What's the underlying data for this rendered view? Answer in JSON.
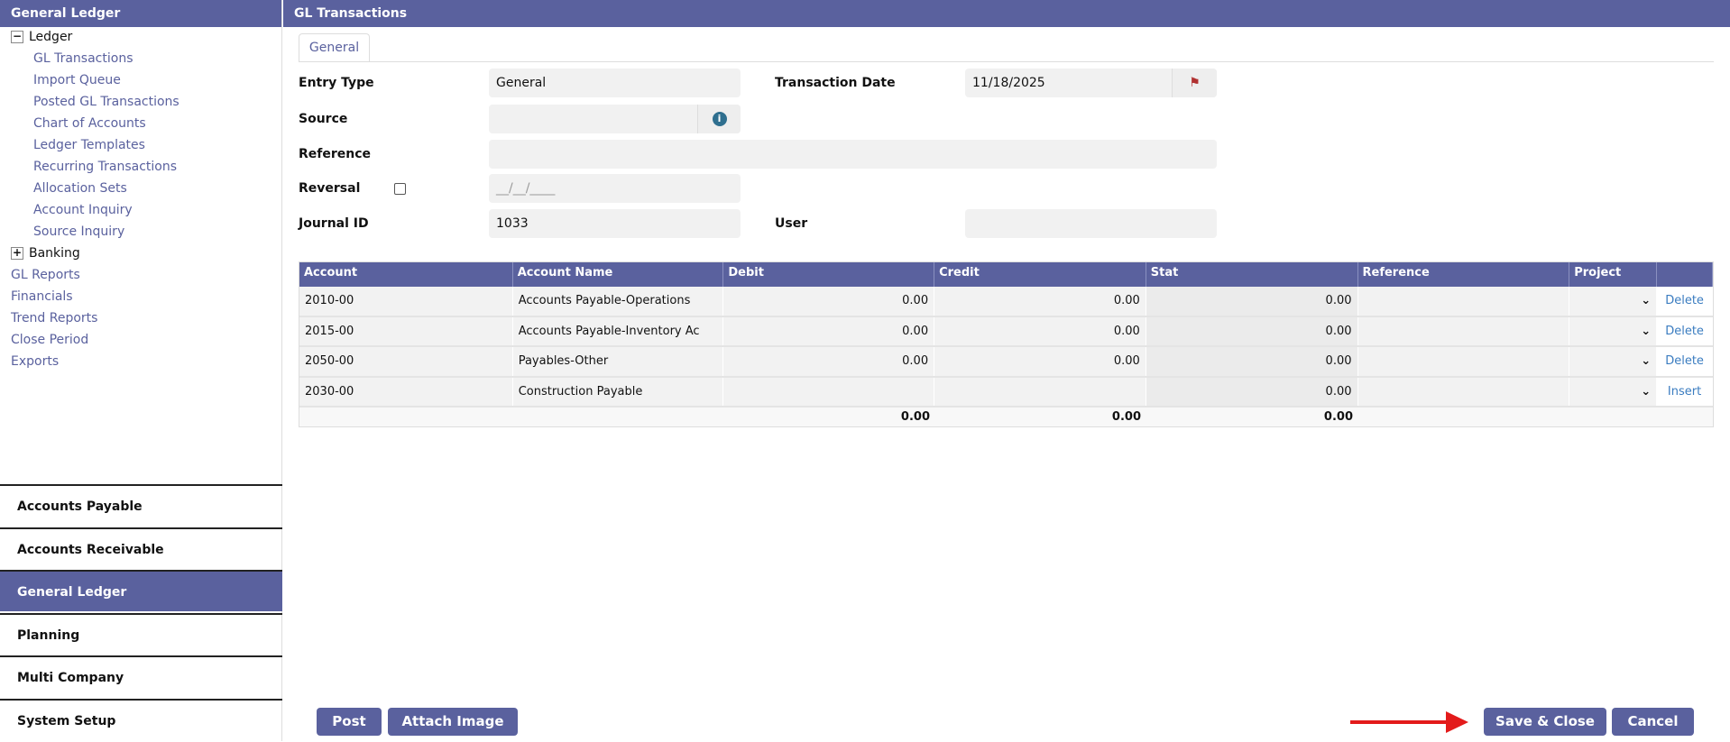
{
  "sidebar": {
    "title": "General Ledger",
    "ledger": {
      "label": "Ledger",
      "items": [
        "GL Transactions",
        "Import Queue",
        "Posted GL Transactions",
        "Chart of Accounts",
        "Ledger Templates",
        "Recurring Transactions",
        "Allocation Sets",
        "Account Inquiry",
        "Source Inquiry"
      ]
    },
    "banking": "Banking",
    "links": [
      "GL Reports",
      "Financials",
      "Trend Reports",
      "Close Period",
      "Exports"
    ],
    "modules": [
      "Accounts Payable",
      "Accounts Receivable",
      "General Ledger",
      "Planning",
      "Multi Company",
      "System Setup"
    ],
    "active_module": "General Ledger"
  },
  "header": {
    "title": "GL Transactions"
  },
  "tabs": [
    "General"
  ],
  "form": {
    "entry_type": {
      "label": "Entry Type",
      "value": "General"
    },
    "transaction_date": {
      "label": "Transaction Date",
      "value": "11/18/2025"
    },
    "source": {
      "label": "Source",
      "value": ""
    },
    "reference": {
      "label": "Reference",
      "value": ""
    },
    "reversal": {
      "label": "Reversal",
      "checked": false,
      "placeholder": "__/__/____"
    },
    "journal_id": {
      "label": "Journal ID",
      "value": "1033"
    },
    "user": {
      "label": "User",
      "value": ""
    }
  },
  "table": {
    "columns": [
      "Account",
      "Account Name",
      "Debit",
      "Credit",
      "Stat",
      "Reference",
      "Project",
      ""
    ],
    "rows": [
      {
        "account": "2010-00",
        "name": "Accounts Payable-Operations",
        "debit": "0.00",
        "credit": "0.00",
        "stat": "0.00",
        "reference": "",
        "project": "",
        "action": "Delete"
      },
      {
        "account": "2015-00",
        "name": "Accounts Payable-Inventory Ac",
        "debit": "0.00",
        "credit": "0.00",
        "stat": "0.00",
        "reference": "",
        "project": "",
        "action": "Delete"
      },
      {
        "account": "2050-00",
        "name": "Payables-Other",
        "debit": "0.00",
        "credit": "0.00",
        "stat": "0.00",
        "reference": "",
        "project": "",
        "action": "Delete"
      },
      {
        "account": "2030-00",
        "name": "Construction Payable",
        "debit": "",
        "credit": "",
        "stat": "0.00",
        "reference": "",
        "project": "",
        "action": "Insert"
      }
    ],
    "totals": {
      "debit": "0.00",
      "credit": "0.00",
      "stat": "0.00"
    }
  },
  "buttons": {
    "post": "Post",
    "attach": "Attach Image",
    "save_close": "Save & Close",
    "cancel": "Cancel"
  },
  "colors": {
    "primary": "#5a619e",
    "link": "#3a7cc0",
    "annotation_arrow": "#e31b1b"
  }
}
